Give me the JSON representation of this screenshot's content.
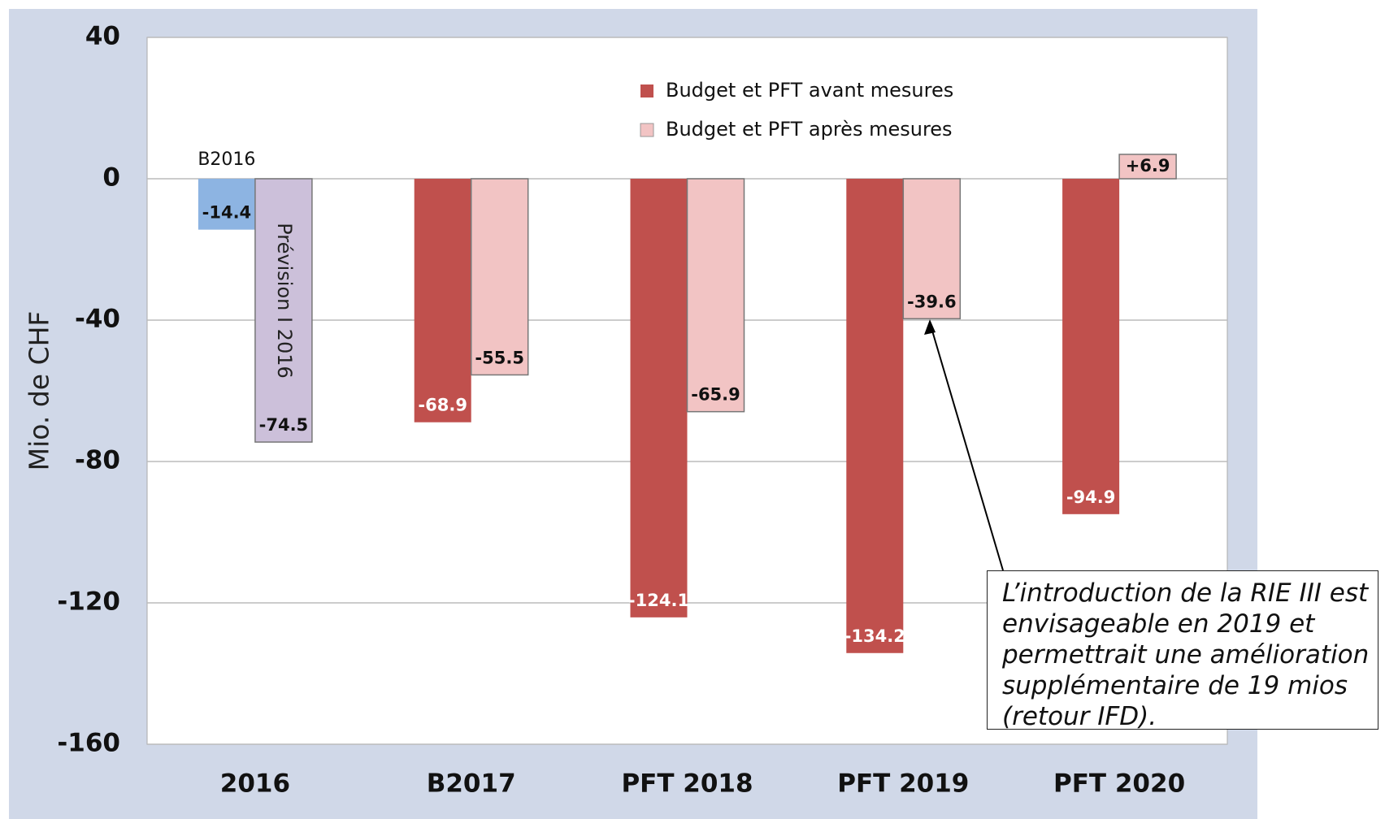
{
  "chart_data": {
    "type": "bar",
    "y_axis_label": "Mio. de CHF",
    "categories": [
      "2016",
      "B2017",
      "PFT 2018",
      "PFT 2019",
      "PFT 2020"
    ],
    "series": [
      {
        "name": "Budget et PFT avant mesures",
        "color": "#c0504d",
        "colors": [
          "#8db4e2",
          "#c0504d",
          "#c0504d",
          "#c0504d",
          "#c0504d"
        ],
        "values": [
          -14.4,
          -68.9,
          -124.1,
          -134.2,
          -94.9
        ]
      },
      {
        "name": "Budget et PFT après mesures",
        "color": "#f2c4c4",
        "colors": [
          "#ccc0da",
          "#f2c4c4",
          "#f2c4c4",
          "#f2c4c4",
          "#f2c4c4"
        ],
        "values": [
          -74.5,
          -55.5,
          -65.9,
          -39.6,
          6.9
        ],
        "value_labels": [
          "-74.5",
          "-55.5",
          "-65.9",
          "-39.6",
          "+6.9"
        ]
      }
    ],
    "ylim": [
      -160,
      40
    ],
    "yticks": [
      40,
      0,
      -40,
      -80,
      -120,
      -160
    ],
    "grid": true,
    "legend": "top",
    "annotations": [
      "B2016",
      "Prévision I 2016",
      "L’introduction de la RIE III est envisageable en 2019 et permettrait une amélioration supplémentaire de 19 mios (retour IFD)."
    ]
  }
}
